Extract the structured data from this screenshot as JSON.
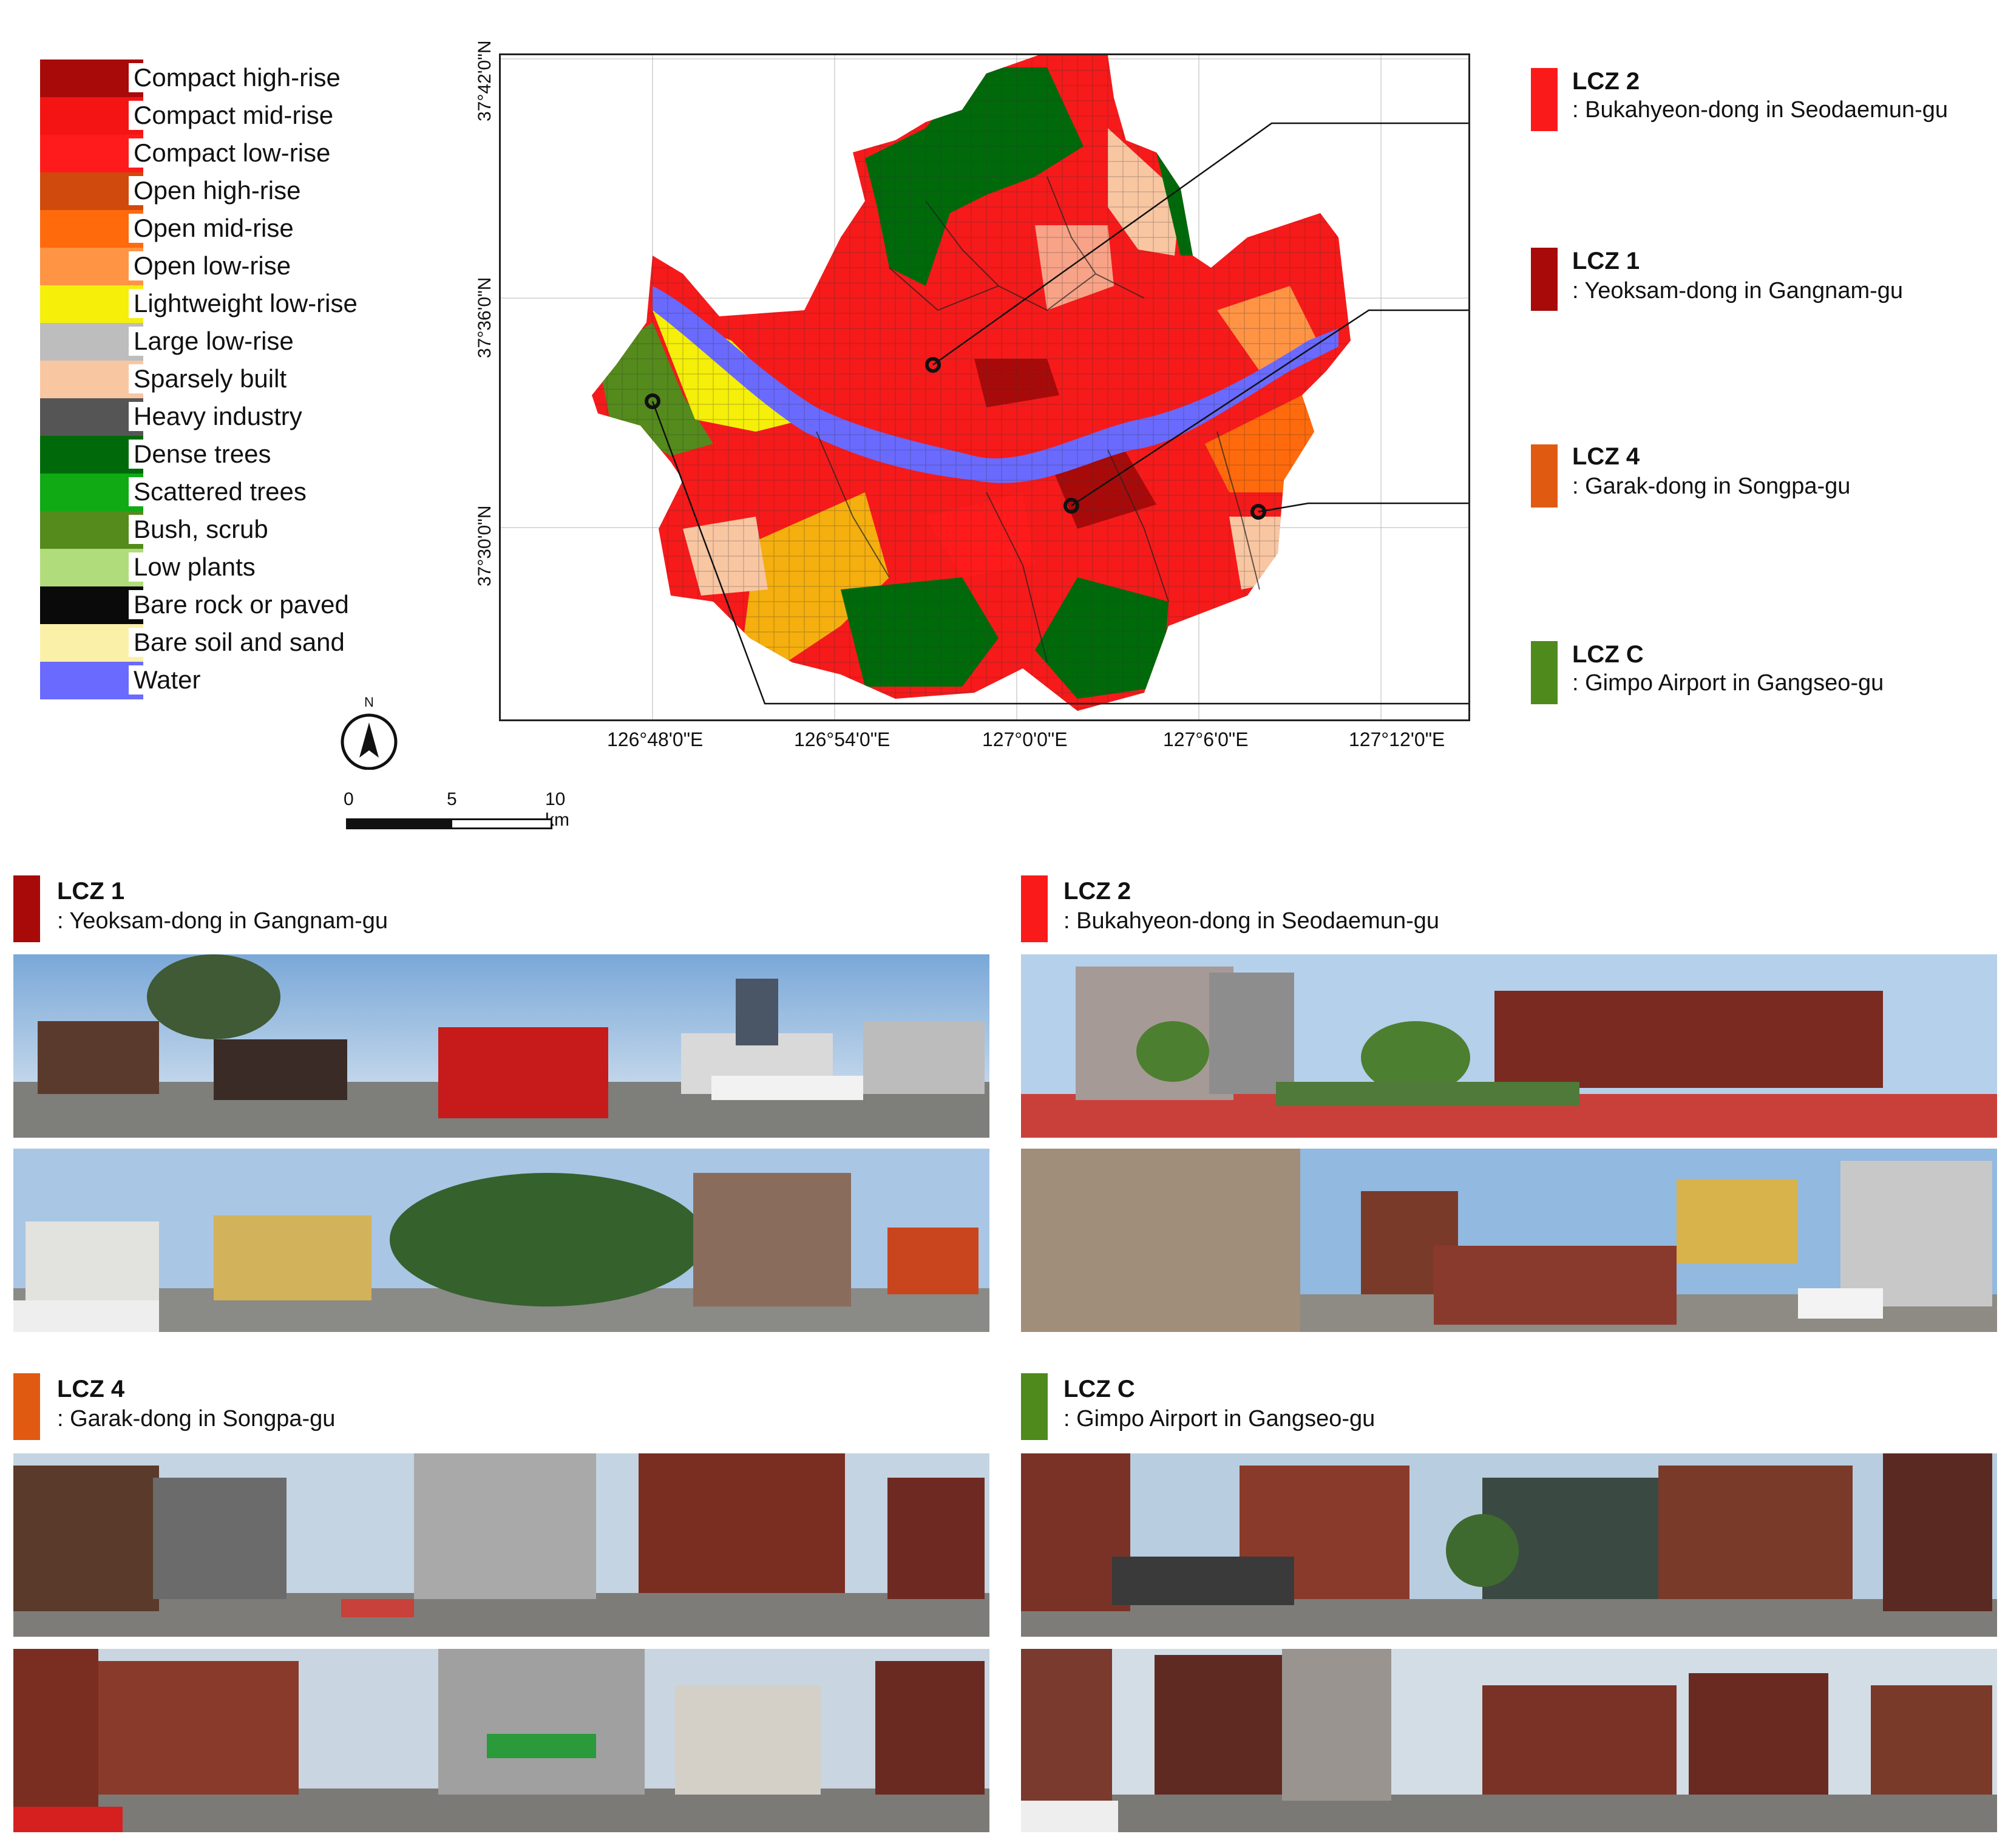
{
  "legend": {
    "items": [
      {
        "label": "Compact high-rise",
        "color": "#a80a0a"
      },
      {
        "label": "Compact mid-rise",
        "color": "#f41414"
      },
      {
        "label": "Compact low-rise",
        "color": "#ff1b1b"
      },
      {
        "label": "Open high-rise",
        "color": "#cf4a0c"
      },
      {
        "label": "Open mid-rise",
        "color": "#ff6a0c"
      },
      {
        "label": "Open low-rise",
        "color": "#ff9445"
      },
      {
        "label": "Lightweight low-rise",
        "color": "#f5ef0a"
      },
      {
        "label": "Large low-rise",
        "color": "#bdbdbd"
      },
      {
        "label": "Sparsely built",
        "color": "#f9c6a2"
      },
      {
        "label": "Heavy industry",
        "color": "#555555"
      },
      {
        "label": "Dense trees",
        "color": "#006a0a"
      },
      {
        "label": "Scattered trees",
        "color": "#0faa14"
      },
      {
        "label": "Bush, scrub",
        "color": "#548b1c"
      },
      {
        "label": "Low plants",
        "color": "#b0dc7c"
      },
      {
        "label": "Bare rock or paved",
        "color": "#0a0a0a"
      },
      {
        "label": "Bare soil and sand",
        "color": "#fbf0a8"
      },
      {
        "label": "Water",
        "color": "#6a6aff"
      }
    ]
  },
  "map": {
    "lat_labels": [
      "37°42'0\"N",
      "37°36'0\"N",
      "37°30'0\"N"
    ],
    "lon_labels": [
      "126°48'0\"E",
      "126°54'0\"E",
      "127°0'0\"E",
      "127°6'0\"E",
      "127°12'0\"E"
    ],
    "north_label": "N",
    "scale": {
      "tick0": "0",
      "tick1": "5",
      "tick2": "10 km"
    }
  },
  "callouts": [
    {
      "title": "LCZ 2",
      "sub": ": Bukahyeon-dong in Seodaemun-gu",
      "color": "#fb1a1a"
    },
    {
      "title": "LCZ 1",
      "sub": ": Yeoksam-dong in Gangnam-gu",
      "color": "#a80a0a"
    },
    {
      "title": "LCZ 4",
      "sub": ": Garak-dong in Songpa-gu",
      "color": "#e15a12"
    },
    {
      "title": "LCZ C",
      "sub": ": Gimpo Airport in Gangseo-gu",
      "color": "#4f8a1c"
    }
  ],
  "panels": [
    {
      "title": "LCZ 1",
      "sub": ": Yeoksam-dong in Gangnam-gu",
      "color": "#a80a0a"
    },
    {
      "title": "LCZ 2",
      "sub": ": Bukahyeon-dong in Seodaemun-gu",
      "color": "#fb1a1a"
    },
    {
      "title": "LCZ 4",
      "sub": ": Garak-dong in Songpa-gu",
      "color": "#e15a12"
    },
    {
      "title": "LCZ C",
      "sub": ": Gimpo Airport in Gangseo-gu",
      "color": "#4f8a1c"
    }
  ]
}
